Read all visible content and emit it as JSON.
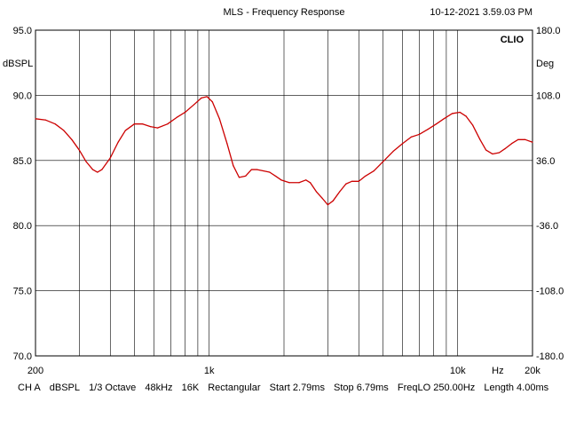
{
  "header": {
    "title": "MLS - Frequency Response",
    "timestamp": "10-12-2021 3.59.03 PM",
    "brand": "CLIO"
  },
  "chart_data": {
    "type": "line",
    "title": "MLS - Frequency Response",
    "xlabel": "Hz",
    "ylabel": "dBSPL",
    "y2label": "Deg",
    "x_scale": "log",
    "xlim": [
      200,
      20000
    ],
    "ylim": [
      70.0,
      95.0
    ],
    "y2lim": [
      -180.0,
      180.0
    ],
    "grid": true,
    "x_tick_labels": [
      {
        "value": 200,
        "label": "200"
      },
      {
        "value": 1000,
        "label": "1k"
      },
      {
        "value": 10000,
        "label": "10k"
      },
      {
        "value": 20000,
        "label": "20k"
      }
    ],
    "x_unit_label": {
      "value": 14500,
      "label": "Hz"
    },
    "y_tick_labels": [
      "95.0",
      "90.0",
      "85.0",
      "80.0",
      "75.0",
      "70.0"
    ],
    "y_tick_values": [
      95,
      90,
      85,
      80,
      75,
      70
    ],
    "y2_tick_labels": [
      "180.0",
      "108.0",
      "36.0",
      "-36.0",
      "-108.0",
      "-180.0"
    ],
    "y2_tick_values": [
      180,
      108,
      36,
      -36,
      -108,
      -180
    ],
    "series": [
      {
        "color": "#cc0000",
        "points": [
          [
            200,
            88.2
          ],
          [
            220,
            88.1
          ],
          [
            240,
            87.8
          ],
          [
            260,
            87.3
          ],
          [
            280,
            86.6
          ],
          [
            300,
            85.8
          ],
          [
            320,
            84.9
          ],
          [
            340,
            84.3
          ],
          [
            355,
            84.1
          ],
          [
            370,
            84.3
          ],
          [
            400,
            85.2
          ],
          [
            430,
            86.4
          ],
          [
            460,
            87.3
          ],
          [
            500,
            87.8
          ],
          [
            540,
            87.8
          ],
          [
            580,
            87.6
          ],
          [
            620,
            87.5
          ],
          [
            680,
            87.8
          ],
          [
            740,
            88.3
          ],
          [
            800,
            88.7
          ],
          [
            870,
            89.3
          ],
          [
            930,
            89.8
          ],
          [
            980,
            89.9
          ],
          [
            1030,
            89.5
          ],
          [
            1100,
            88.2
          ],
          [
            1180,
            86.3
          ],
          [
            1250,
            84.6
          ],
          [
            1320,
            83.7
          ],
          [
            1400,
            83.8
          ],
          [
            1480,
            84.3
          ],
          [
            1560,
            84.3
          ],
          [
            1650,
            84.2
          ],
          [
            1750,
            84.1
          ],
          [
            1850,
            83.8
          ],
          [
            1950,
            83.5
          ],
          [
            2100,
            83.3
          ],
          [
            2300,
            83.3
          ],
          [
            2450,
            83.5
          ],
          [
            2550,
            83.3
          ],
          [
            2700,
            82.6
          ],
          [
            2850,
            82.1
          ],
          [
            3000,
            81.6
          ],
          [
            3150,
            81.9
          ],
          [
            3350,
            82.6
          ],
          [
            3550,
            83.2
          ],
          [
            3750,
            83.4
          ],
          [
            4000,
            83.4
          ],
          [
            4250,
            83.8
          ],
          [
            4600,
            84.2
          ],
          [
            5000,
            84.9
          ],
          [
            5500,
            85.7
          ],
          [
            6000,
            86.3
          ],
          [
            6500,
            86.8
          ],
          [
            7000,
            87.0
          ],
          [
            7600,
            87.4
          ],
          [
            8200,
            87.8
          ],
          [
            8800,
            88.2
          ],
          [
            9500,
            88.6
          ],
          [
            10200,
            88.7
          ],
          [
            10800,
            88.4
          ],
          [
            11500,
            87.7
          ],
          [
            12300,
            86.6
          ],
          [
            13000,
            85.8
          ],
          [
            13800,
            85.5
          ],
          [
            14700,
            85.6
          ],
          [
            15500,
            85.9
          ],
          [
            16500,
            86.3
          ],
          [
            17500,
            86.6
          ],
          [
            18700,
            86.6
          ],
          [
            20000,
            86.4
          ]
        ]
      }
    ]
  },
  "status_bar": {
    "channel": "CH A",
    "unit": "dBSPL",
    "smoothing": "1/3 Octave",
    "sample_rate": "48kHz",
    "size": "16K",
    "window": "Rectangular",
    "start": "Start 2.79ms",
    "stop": "Stop 6.79ms",
    "freqlo": "FreqLO 250.00Hz",
    "length": "Length 4.00ms"
  }
}
